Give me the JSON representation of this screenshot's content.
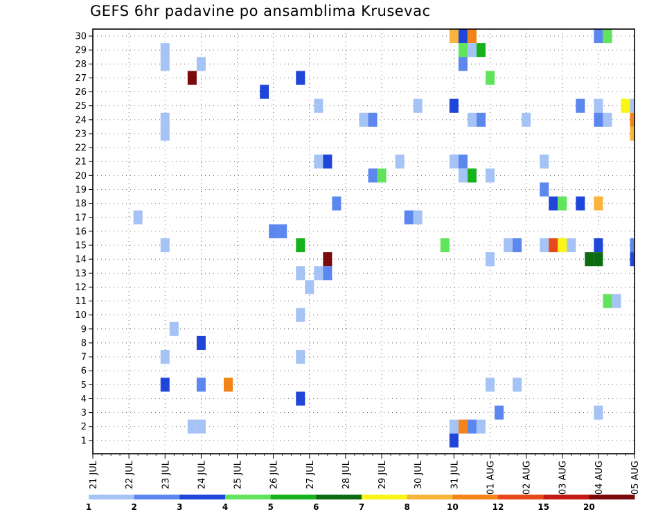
{
  "chart_data": {
    "type": "heatmap",
    "title": "GEFS 6hr padavine po ansamblima Krusevac",
    "xlabel": "",
    "ylabel": "",
    "x_tick_labels": [
      "21 JUL",
      "22 JUL",
      "23 JUL",
      "24 JUL",
      "25 JUL",
      "26 JUL",
      "27 JUL",
      "28 JUL",
      "29 JUL",
      "30 JUL",
      "31 JUL",
      "01 AUG",
      "02 AUG",
      "03 AUG",
      "04 AUG",
      "05 AUG"
    ],
    "y_tick_labels": [
      "1",
      "2",
      "3",
      "4",
      "5",
      "6",
      "7",
      "8",
      "9",
      "10",
      "11",
      "12",
      "13",
      "14",
      "15",
      "16",
      "17",
      "18",
      "19",
      "20",
      "21",
      "22",
      "23",
      "24",
      "25",
      "26",
      "27",
      "28",
      "29",
      "30"
    ],
    "xlim_days": [
      0,
      15
    ],
    "ylim": [
      0,
      30
    ],
    "grid": true,
    "legend": {
      "position": "bottom",
      "labels": [
        "1",
        "2",
        "3",
        "4",
        "5",
        "6",
        "7",
        "8",
        "10",
        "12",
        "15",
        "20"
      ],
      "colors": [
        "#a6c3f5",
        "#5b87ee",
        "#1f46d8",
        "#62e35c",
        "#16b21d",
        "#0d6b11",
        "#f8f517",
        "#f9b43b",
        "#f2841a",
        "#e8491a",
        "#c31a14",
        "#7b0b0b"
      ]
    },
    "cells": [
      {
        "member": 30,
        "time": "31 JUL 00Z",
        "level": 8
      },
      {
        "member": 30,
        "time": "31 JUL 06Z",
        "level": 3
      },
      {
        "member": 30,
        "time": "31 JUL 12Z",
        "level": 10
      },
      {
        "member": 30,
        "time": "04 AUG 00Z",
        "level": 2
      },
      {
        "member": 30,
        "time": "04 AUG 06Z",
        "level": 4
      },
      {
        "member": 29,
        "time": "23 JUL 00Z",
        "level": 1
      },
      {
        "member": 29,
        "time": "31 JUL 06Z",
        "level": 4
      },
      {
        "member": 29,
        "time": "31 JUL 12Z",
        "level": 1
      },
      {
        "member": 29,
        "time": "31 JUL 18Z",
        "level": 5
      },
      {
        "member": 28,
        "time": "23 JUL 00Z",
        "level": 1
      },
      {
        "member": 28,
        "time": "24 JUL 00Z",
        "level": 1
      },
      {
        "member": 28,
        "time": "31 JUL 06Z",
        "level": 2
      },
      {
        "member": 27,
        "time": "23 JUL 18Z",
        "level": 20
      },
      {
        "member": 27,
        "time": "26 JUL 18Z",
        "level": 3
      },
      {
        "member": 27,
        "time": "01 AUG 00Z",
        "level": 4
      },
      {
        "member": 26,
        "time": "25 JUL 18Z",
        "level": 3
      },
      {
        "member": 25,
        "time": "27 JUL 06Z",
        "level": 1
      },
      {
        "member": 25,
        "time": "30 JUL 00Z",
        "level": 1
      },
      {
        "member": 25,
        "time": "31 JUL 00Z",
        "level": 3
      },
      {
        "member": 25,
        "time": "03 AUG 12Z",
        "level": 2
      },
      {
        "member": 25,
        "time": "04 AUG 00Z",
        "level": 1
      },
      {
        "member": 25,
        "time": "04 AUG 18Z",
        "level": 7
      },
      {
        "member": 25,
        "time": "05 AUG 00Z",
        "level": 1
      },
      {
        "member": 24,
        "time": "23 JUL 00Z",
        "level": 1
      },
      {
        "member": 24,
        "time": "28 JUL 12Z",
        "level": 1
      },
      {
        "member": 24,
        "time": "28 JUL 18Z",
        "level": 2
      },
      {
        "member": 24,
        "time": "31 JUL 12Z",
        "level": 1
      },
      {
        "member": 24,
        "time": "31 JUL 18Z",
        "level": 2
      },
      {
        "member": 24,
        "time": "02 AUG 00Z",
        "level": 1
      },
      {
        "member": 24,
        "time": "04 AUG 00Z",
        "level": 2
      },
      {
        "member": 24,
        "time": "04 AUG 06Z",
        "level": 1
      },
      {
        "member": 24,
        "time": "05 AUG 00Z",
        "level": 10
      },
      {
        "member": 23,
        "time": "23 JUL 00Z",
        "level": 1
      },
      {
        "member": 23,
        "time": "05 AUG 00Z",
        "level": 8
      },
      {
        "member": 21,
        "time": "27 JUL 06Z",
        "level": 1
      },
      {
        "member": 21,
        "time": "27 JUL 12Z",
        "level": 3
      },
      {
        "member": 21,
        "time": "29 JUL 12Z",
        "level": 1
      },
      {
        "member": 21,
        "time": "31 JUL 00Z",
        "level": 1
      },
      {
        "member": 21,
        "time": "31 JUL 06Z",
        "level": 2
      },
      {
        "member": 21,
        "time": "02 AUG 12Z",
        "level": 1
      },
      {
        "member": 20,
        "time": "28 JUL 18Z",
        "level": 2
      },
      {
        "member": 20,
        "time": "29 JUL 00Z",
        "level": 4
      },
      {
        "member": 20,
        "time": "31 JUL 06Z",
        "level": 1
      },
      {
        "member": 20,
        "time": "31 JUL 12Z",
        "level": 5
      },
      {
        "member": 20,
        "time": "01 AUG 00Z",
        "level": 1
      },
      {
        "member": 19,
        "time": "02 AUG 12Z",
        "level": 2
      },
      {
        "member": 18,
        "time": "27 JUL 18Z",
        "level": 2
      },
      {
        "member": 18,
        "time": "02 AUG 18Z",
        "level": 3
      },
      {
        "member": 18,
        "time": "03 AUG 00Z",
        "level": 4
      },
      {
        "member": 18,
        "time": "03 AUG 12Z",
        "level": 3
      },
      {
        "member": 18,
        "time": "04 AUG 00Z",
        "level": 8
      },
      {
        "member": 17,
        "time": "22 JUL 06Z",
        "level": 1
      },
      {
        "member": 17,
        "time": "29 JUL 18Z",
        "level": 2
      },
      {
        "member": 17,
        "time": "30 JUL 00Z",
        "level": 1
      },
      {
        "member": 16,
        "time": "26 JUL 00Z",
        "level": 2
      },
      {
        "member": 16,
        "time": "26 JUL 06Z",
        "level": 2
      },
      {
        "member": 15,
        "time": "23 JUL 00Z",
        "level": 1
      },
      {
        "member": 15,
        "time": "26 JUL 18Z",
        "level": 5
      },
      {
        "member": 15,
        "time": "30 JUL 18Z",
        "level": 4
      },
      {
        "member": 15,
        "time": "01 AUG 12Z",
        "level": 1
      },
      {
        "member": 15,
        "time": "01 AUG 18Z",
        "level": 2
      },
      {
        "member": 15,
        "time": "02 AUG 12Z",
        "level": 1
      },
      {
        "member": 15,
        "time": "02 AUG 18Z",
        "level": 12
      },
      {
        "member": 15,
        "time": "03 AUG 00Z",
        "level": 7
      },
      {
        "member": 15,
        "time": "03 AUG 06Z",
        "level": 1
      },
      {
        "member": 15,
        "time": "04 AUG 00Z",
        "level": 3
      },
      {
        "member": 15,
        "time": "05 AUG 00Z",
        "level": 2
      },
      {
        "member": 14,
        "time": "27 JUL 12Z",
        "level": 20
      },
      {
        "member": 14,
        "time": "01 AUG 00Z",
        "level": 1
      },
      {
        "member": 14,
        "time": "03 AUG 18Z",
        "level": 6
      },
      {
        "member": 14,
        "time": "04 AUG 00Z",
        "level": 6
      },
      {
        "member": 14,
        "time": "05 AUG 00Z",
        "level": 3
      },
      {
        "member": 14,
        "time": "05 AUG 06Z",
        "level": 20
      },
      {
        "member": 13,
        "time": "26 JUL 18Z",
        "level": 1
      },
      {
        "member": 13,
        "time": "27 JUL 06Z",
        "level": 1
      },
      {
        "member": 13,
        "time": "27 JUL 12Z",
        "level": 2
      },
      {
        "member": 12,
        "time": "27 JUL 00Z",
        "level": 1
      },
      {
        "member": 11,
        "time": "04 AUG 06Z",
        "level": 4
      },
      {
        "member": 11,
        "time": "04 AUG 12Z",
        "level": 1
      },
      {
        "member": 10,
        "time": "26 JUL 18Z",
        "level": 1
      },
      {
        "member": 9,
        "time": "23 JUL 06Z",
        "level": 1
      },
      {
        "member": 8,
        "time": "24 JUL 00Z",
        "level": 3
      },
      {
        "member": 7,
        "time": "23 JUL 00Z",
        "level": 1
      },
      {
        "member": 7,
        "time": "26 JUL 18Z",
        "level": 1
      },
      {
        "member": 5,
        "time": "23 JUL 00Z",
        "level": 3
      },
      {
        "member": 5,
        "time": "24 JUL 00Z",
        "level": 2
      },
      {
        "member": 5,
        "time": "24 JUL 18Z",
        "level": 10
      },
      {
        "member": 5,
        "time": "01 AUG 18Z",
        "level": 1
      },
      {
        "member": 5,
        "time": "01 AUG 00Z",
        "level": 1
      },
      {
        "member": 4,
        "time": "26 JUL 18Z",
        "level": 3
      },
      {
        "member": 3,
        "time": "01 AUG 06Z",
        "level": 2
      },
      {
        "member": 3,
        "time": "04 AUG 00Z",
        "level": 1
      },
      {
        "member": 2,
        "time": "23 JUL 18Z",
        "level": 1
      },
      {
        "member": 2,
        "time": "24 JUL 00Z",
        "level": 1
      },
      {
        "member": 2,
        "time": "31 JUL 00Z",
        "level": 1
      },
      {
        "member": 2,
        "time": "31 JUL 06Z",
        "level": 10
      },
      {
        "member": 2,
        "time": "31 JUL 12Z",
        "level": 2
      },
      {
        "member": 2,
        "time": "31 JUL 18Z",
        "level": 1
      },
      {
        "member": 1,
        "time": "31 JUL 00Z",
        "level": 3
      }
    ]
  }
}
